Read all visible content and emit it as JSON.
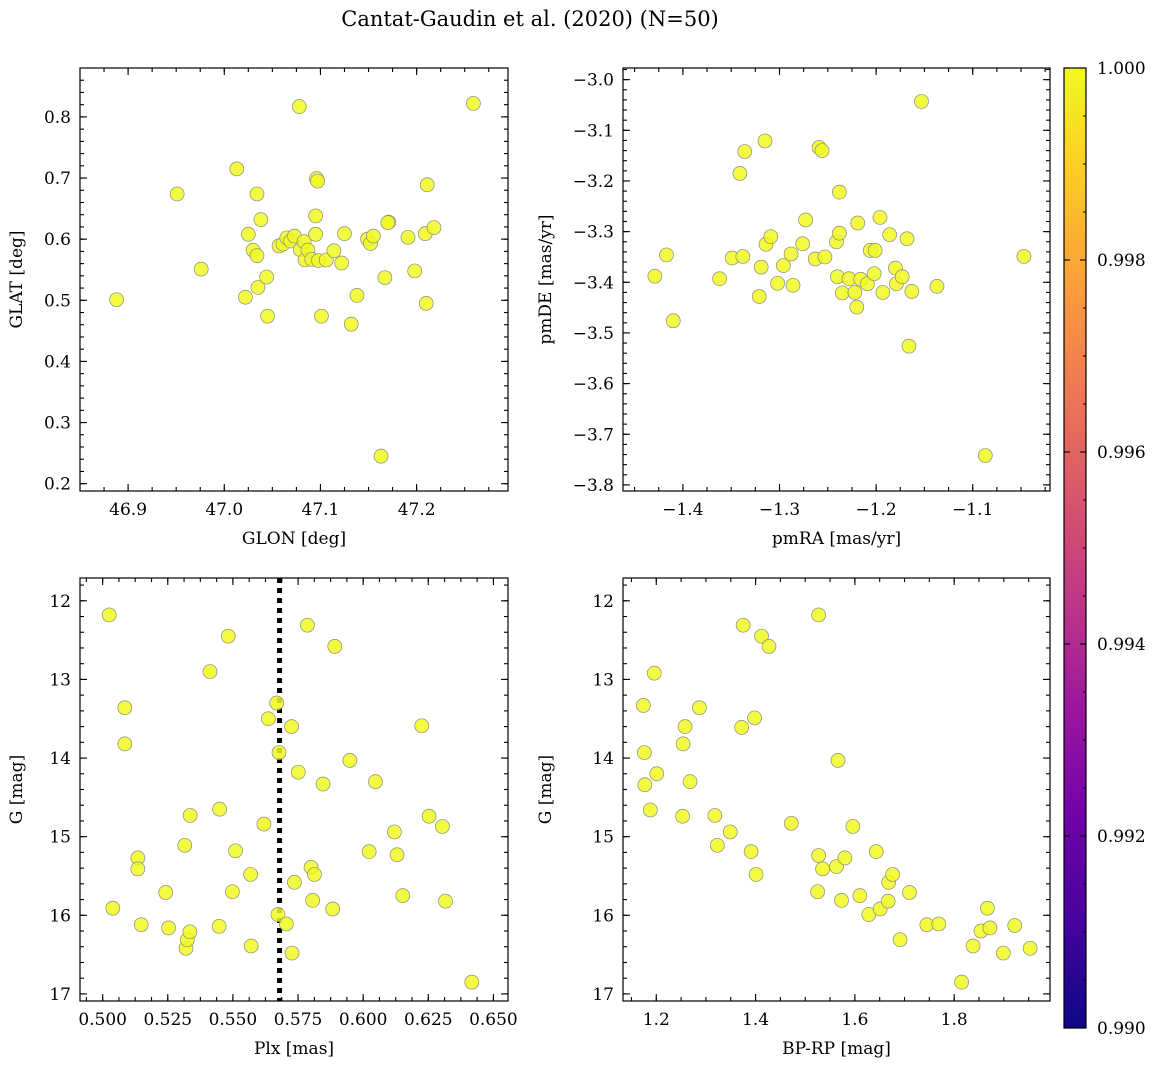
{
  "figure": {
    "title": "Cantat-Gaudin et al. (2020) (N=50)"
  },
  "colors": {
    "point_fill": "#f0f921",
    "point_edge": "#8a8a8a",
    "reference_line": "#000000",
    "colormap": [
      "#0d0887",
      "#46039f",
      "#7201a8",
      "#9c179e",
      "#bd3786",
      "#d8576b",
      "#ed7953",
      "#fb9f3a",
      "#fdca26",
      "#f0f921"
    ]
  },
  "colorbar": {
    "range": [
      0.99,
      1.0
    ],
    "ticks": [
      0.99,
      0.992,
      0.994,
      0.996,
      0.998,
      1.0
    ],
    "tick_labels": [
      "0.990",
      "0.992",
      "0.994",
      "0.996",
      "0.998",
      "1.000"
    ]
  },
  "chart_data": [
    {
      "id": "glon-glat",
      "type": "scatter",
      "xlabel": "GLON [deg]",
      "ylabel": "GLAT [deg]",
      "xlim": [
        46.85,
        47.295
      ],
      "ylim": [
        0.188,
        0.88
      ],
      "xticks": [
        46.9,
        47.0,
        47.1,
        47.2
      ],
      "xtick_labels": [
        "46.9",
        "47.0",
        "47.1",
        "47.2"
      ],
      "yticks": [
        0.2,
        0.3,
        0.4,
        0.5,
        0.6,
        0.7,
        0.8
      ],
      "ytick_labels": [
        "0.2",
        "0.3",
        "0.4",
        "0.5",
        "0.6",
        "0.7",
        "0.8"
      ],
      "y_inverted": false,
      "points": [
        [
          46.888,
          0.501
        ],
        [
          46.951,
          0.674
        ],
        [
          46.976,
          0.551
        ],
        [
          47.013,
          0.715
        ],
        [
          47.022,
          0.505
        ],
        [
          47.025,
          0.608
        ],
        [
          47.03,
          0.582
        ],
        [
          47.034,
          0.674
        ],
        [
          47.034,
          0.573
        ],
        [
          47.035,
          0.521
        ],
        [
          47.038,
          0.632
        ],
        [
          47.044,
          0.538
        ],
        [
          47.045,
          0.474
        ],
        [
          47.057,
          0.589
        ],
        [
          47.061,
          0.592
        ],
        [
          47.065,
          0.602
        ],
        [
          47.069,
          0.597
        ],
        [
          47.073,
          0.605
        ],
        [
          47.078,
          0.817
        ],
        [
          47.079,
          0.583
        ],
        [
          47.083,
          0.596
        ],
        [
          47.084,
          0.566
        ],
        [
          47.087,
          0.582
        ],
        [
          47.091,
          0.567
        ],
        [
          47.095,
          0.608
        ],
        [
          47.095,
          0.638
        ],
        [
          47.096,
          0.699
        ],
        [
          47.097,
          0.695
        ],
        [
          47.098,
          0.565
        ],
        [
          47.101,
          0.474
        ],
        [
          47.106,
          0.566
        ],
        [
          47.114,
          0.581
        ],
        [
          47.122,
          0.561
        ],
        [
          47.125,
          0.609
        ],
        [
          47.132,
          0.461
        ],
        [
          47.138,
          0.508
        ],
        [
          47.149,
          0.6
        ],
        [
          47.152,
          0.593
        ],
        [
          47.155,
          0.605
        ],
        [
          47.163,
          0.245
        ],
        [
          47.167,
          0.537
        ],
        [
          47.171,
          0.628
        ],
        [
          47.191,
          0.603
        ],
        [
          47.198,
          0.548
        ],
        [
          47.209,
          0.609
        ],
        [
          47.21,
          0.495
        ],
        [
          47.211,
          0.689
        ],
        [
          47.218,
          0.619
        ],
        [
          47.259,
          0.822
        ],
        [
          47.17,
          0.627
        ]
      ]
    },
    {
      "id": "pmra-pmde",
      "type": "scatter",
      "xlabel": "pmRA [mas/yr]",
      "ylabel": "pmDE [mas/yr]",
      "xlim": [
        -1.462,
        -1.02
      ],
      "ylim": [
        -3.812,
        -2.977
      ],
      "xticks": [
        -1.4,
        -1.3,
        -1.2,
        -1.1
      ],
      "xtick_labels": [
        "−1.4",
        "−1.3",
        "−1.2",
        "−1.1"
      ],
      "yticks": [
        -3.8,
        -3.7,
        -3.6,
        -3.5,
        -3.4,
        -3.3,
        -3.2,
        -3.1,
        -3.0
      ],
      "ytick_labels": [
        "−3.8",
        "−3.7",
        "−3.6",
        "−3.5",
        "−3.4",
        "−3.3",
        "−3.2",
        "−3.1",
        "−3.0"
      ],
      "y_inverted": false,
      "points": [
        [
          -1.429,
          -3.388
        ],
        [
          -1.417,
          -3.346
        ],
        [
          -1.41,
          -3.476
        ],
        [
          -1.362,
          -3.393
        ],
        [
          -1.349,
          -3.352
        ],
        [
          -1.341,
          -3.185
        ],
        [
          -1.338,
          -3.349
        ],
        [
          -1.336,
          -3.142
        ],
        [
          -1.321,
          -3.428
        ],
        [
          -1.319,
          -3.37
        ],
        [
          -1.315,
          -3.121
        ],
        [
          -1.314,
          -3.325
        ],
        [
          -1.309,
          -3.31
        ],
        [
          -1.302,
          -3.402
        ],
        [
          -1.296,
          -3.367
        ],
        [
          -1.288,
          -3.344
        ],
        [
          -1.286,
          -3.406
        ],
        [
          -1.276,
          -3.324
        ],
        [
          -1.273,
          -3.277
        ],
        [
          -1.263,
          -3.354
        ],
        [
          -1.259,
          -3.134
        ],
        [
          -1.256,
          -3.14
        ],
        [
          -1.253,
          -3.35
        ],
        [
          -1.241,
          -3.32
        ],
        [
          -1.24,
          -3.389
        ],
        [
          -1.238,
          -3.222
        ],
        [
          -1.238,
          -3.303
        ],
        [
          -1.235,
          -3.421
        ],
        [
          -1.228,
          -3.393
        ],
        [
          -1.222,
          -3.42
        ],
        [
          -1.22,
          -3.449
        ],
        [
          -1.219,
          -3.283
        ],
        [
          -1.216,
          -3.394
        ],
        [
          -1.209,
          -3.403
        ],
        [
          -1.206,
          -3.337
        ],
        [
          -1.202,
          -3.383
        ],
        [
          -1.201,
          -3.337
        ],
        [
          -1.196,
          -3.272
        ],
        [
          -1.193,
          -3.42
        ],
        [
          -1.186,
          -3.306
        ],
        [
          -1.18,
          -3.372
        ],
        [
          -1.179,
          -3.403
        ],
        [
          -1.173,
          -3.389
        ],
        [
          -1.168,
          -3.314
        ],
        [
          -1.166,
          -3.526
        ],
        [
          -1.163,
          -3.418
        ],
        [
          -1.153,
          -3.043
        ],
        [
          -1.137,
          -3.408
        ],
        [
          -1.087,
          -3.742
        ],
        [
          -1.047,
          -3.349
        ]
      ]
    },
    {
      "id": "plx-g",
      "type": "scatter",
      "xlabel": "Plx [mas]",
      "ylabel": "G [mag]",
      "xlim": [
        0.4913,
        0.6556
      ],
      "ylim": [
        17.09,
        11.71
      ],
      "xticks": [
        0.5,
        0.525,
        0.55,
        0.575,
        0.6,
        0.625,
        0.65
      ],
      "xtick_labels": [
        "0.500",
        "0.525",
        "0.550",
        "0.575",
        "0.600",
        "0.625",
        "0.650"
      ],
      "yticks": [
        12,
        13,
        14,
        15,
        16,
        17
      ],
      "ytick_labels": [
        "12",
        "13",
        "14",
        "15",
        "16",
        "17"
      ],
      "y_inverted": true,
      "reference_line_x": 0.5679,
      "points": [
        [
          0.5025,
          12.18
        ],
        [
          0.5039,
          15.91
        ],
        [
          0.5085,
          13.36
        ],
        [
          0.5085,
          13.82
        ],
        [
          0.5135,
          15.27
        ],
        [
          0.5135,
          15.41
        ],
        [
          0.5148,
          16.12
        ],
        [
          0.5242,
          15.71
        ],
        [
          0.5253,
          16.16
        ],
        [
          0.5315,
          15.11
        ],
        [
          0.532,
          16.42
        ],
        [
          0.5325,
          16.31
        ],
        [
          0.5335,
          16.21
        ],
        [
          0.5336,
          14.73
        ],
        [
          0.5412,
          12.9
        ],
        [
          0.5447,
          16.14
        ],
        [
          0.5449,
          14.65
        ],
        [
          0.5482,
          12.45
        ],
        [
          0.5498,
          15.7
        ],
        [
          0.551,
          15.18
        ],
        [
          0.5568,
          15.48
        ],
        [
          0.557,
          16.39
        ],
        [
          0.5619,
          14.84
        ],
        [
          0.5636,
          13.5
        ],
        [
          0.5668,
          13.3
        ],
        [
          0.5673,
          15.99
        ],
        [
          0.5677,
          13.93
        ],
        [
          0.5705,
          16.11
        ],
        [
          0.5725,
          13.6
        ],
        [
          0.5727,
          16.48
        ],
        [
          0.5736,
          15.58
        ],
        [
          0.5751,
          14.18
        ],
        [
          0.5786,
          12.31
        ],
        [
          0.58,
          15.39
        ],
        [
          0.5806,
          15.81
        ],
        [
          0.5813,
          15.48
        ],
        [
          0.5846,
          14.33
        ],
        [
          0.5883,
          15.92
        ],
        [
          0.5891,
          12.58
        ],
        [
          0.5949,
          14.03
        ],
        [
          0.6023,
          15.19
        ],
        [
          0.6047,
          14.3
        ],
        [
          0.612,
          14.94
        ],
        [
          0.613,
          15.23
        ],
        [
          0.6152,
          15.75
        ],
        [
          0.6225,
          13.59
        ],
        [
          0.6253,
          14.74
        ],
        [
          0.6304,
          14.87
        ],
        [
          0.6316,
          15.82
        ],
        [
          0.6417,
          16.85
        ]
      ]
    },
    {
      "id": "bprp-g",
      "type": "scatter",
      "xlabel": "BP-RP [mag]",
      "ylabel": "G [mag]",
      "xlim": [
        1.133,
        1.993
      ],
      "ylim": [
        17.09,
        11.71
      ],
      "xticks": [
        1.2,
        1.4,
        1.6,
        1.8
      ],
      "xtick_labels": [
        "1.2",
        "1.4",
        "1.6",
        "1.8"
      ],
      "yticks": [
        12,
        13,
        14,
        15,
        16,
        17
      ],
      "ytick_labels": [
        "12",
        "13",
        "14",
        "15",
        "16",
        "17"
      ],
      "y_inverted": true,
      "points": [
        [
          1.174,
          13.33
        ],
        [
          1.176,
          13.93
        ],
        [
          1.177,
          14.34
        ],
        [
          1.188,
          14.66
        ],
        [
          1.196,
          12.92
        ],
        [
          1.201,
          14.2
        ],
        [
          1.253,
          14.74
        ],
        [
          1.254,
          13.82
        ],
        [
          1.258,
          13.6
        ],
        [
          1.268,
          14.3
        ],
        [
          1.287,
          13.36
        ],
        [
          1.318,
          14.73
        ],
        [
          1.323,
          15.11
        ],
        [
          1.349,
          14.94
        ],
        [
          1.372,
          13.61
        ],
        [
          1.375,
          12.31
        ],
        [
          1.391,
          15.19
        ],
        [
          1.398,
          13.49
        ],
        [
          1.401,
          15.48
        ],
        [
          1.412,
          12.45
        ],
        [
          1.427,
          12.58
        ],
        [
          1.472,
          14.83
        ],
        [
          1.525,
          15.7
        ],
        [
          1.527,
          15.24
        ],
        [
          1.527,
          12.18
        ],
        [
          1.535,
          15.41
        ],
        [
          1.563,
          15.38
        ],
        [
          1.566,
          14.03
        ],
        [
          1.573,
          15.81
        ],
        [
          1.58,
          15.27
        ],
        [
          1.596,
          14.87
        ],
        [
          1.61,
          15.75
        ],
        [
          1.628,
          15.99
        ],
        [
          1.643,
          15.19
        ],
        [
          1.651,
          15.92
        ],
        [
          1.667,
          15.82
        ],
        [
          1.668,
          15.58
        ],
        [
          1.676,
          15.48
        ],
        [
          1.691,
          16.31
        ],
        [
          1.71,
          15.71
        ],
        [
          1.745,
          16.12
        ],
        [
          1.769,
          16.11
        ],
        [
          1.815,
          16.85
        ],
        [
          1.838,
          16.39
        ],
        [
          1.854,
          16.2
        ],
        [
          1.867,
          15.91
        ],
        [
          1.872,
          16.16
        ],
        [
          1.899,
          16.48
        ],
        [
          1.922,
          16.13
        ],
        [
          1.953,
          16.42
        ]
      ]
    }
  ]
}
